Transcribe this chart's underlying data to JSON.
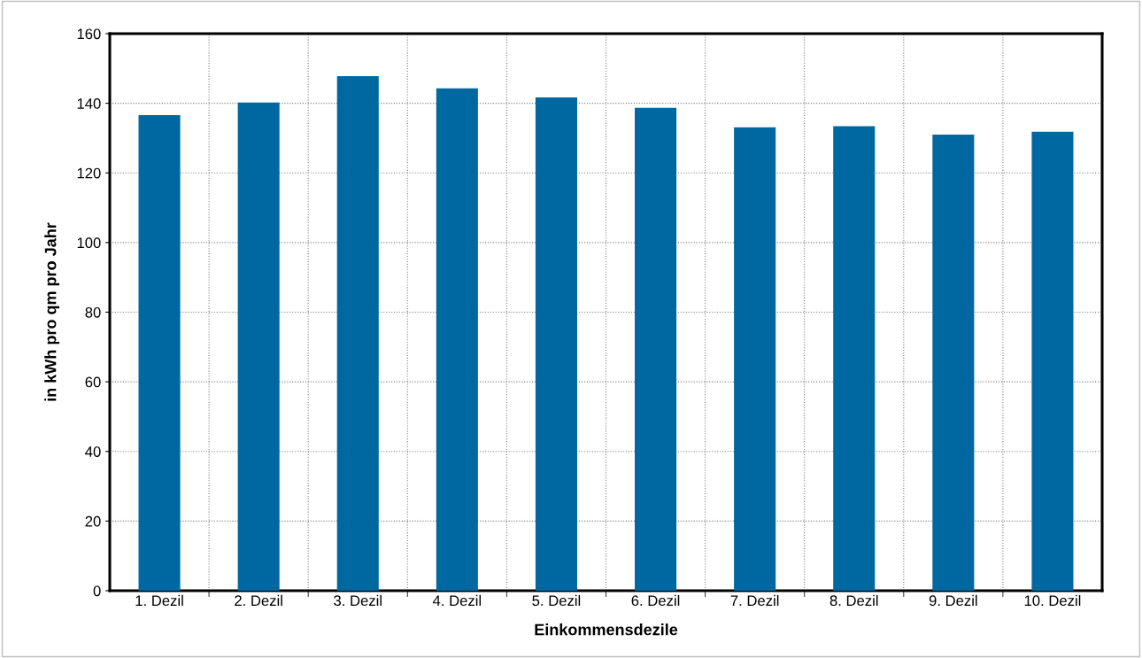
{
  "chart_data": {
    "type": "bar",
    "categories": [
      "1. Dezil",
      "2. Dezil",
      "3. Dezil",
      "4. Dezil",
      "5. Dezil",
      "6. Dezil",
      "7. Dezil",
      "8. Dezil",
      "9. Dezil",
      "10. Dezil"
    ],
    "values": [
      136.6,
      140.2,
      147.8,
      144.3,
      141.7,
      138.7,
      133.1,
      133.4,
      131.0,
      131.8
    ],
    "color": "#0068a0",
    "xlabel": "Einkommensdezile",
    "ylabel": "in kWh pro qm pro Jahr",
    "ylim": [
      0,
      160
    ],
    "yticks": [
      0,
      20,
      40,
      60,
      80,
      100,
      120,
      140,
      160
    ],
    "grid": true,
    "legend": false
  }
}
